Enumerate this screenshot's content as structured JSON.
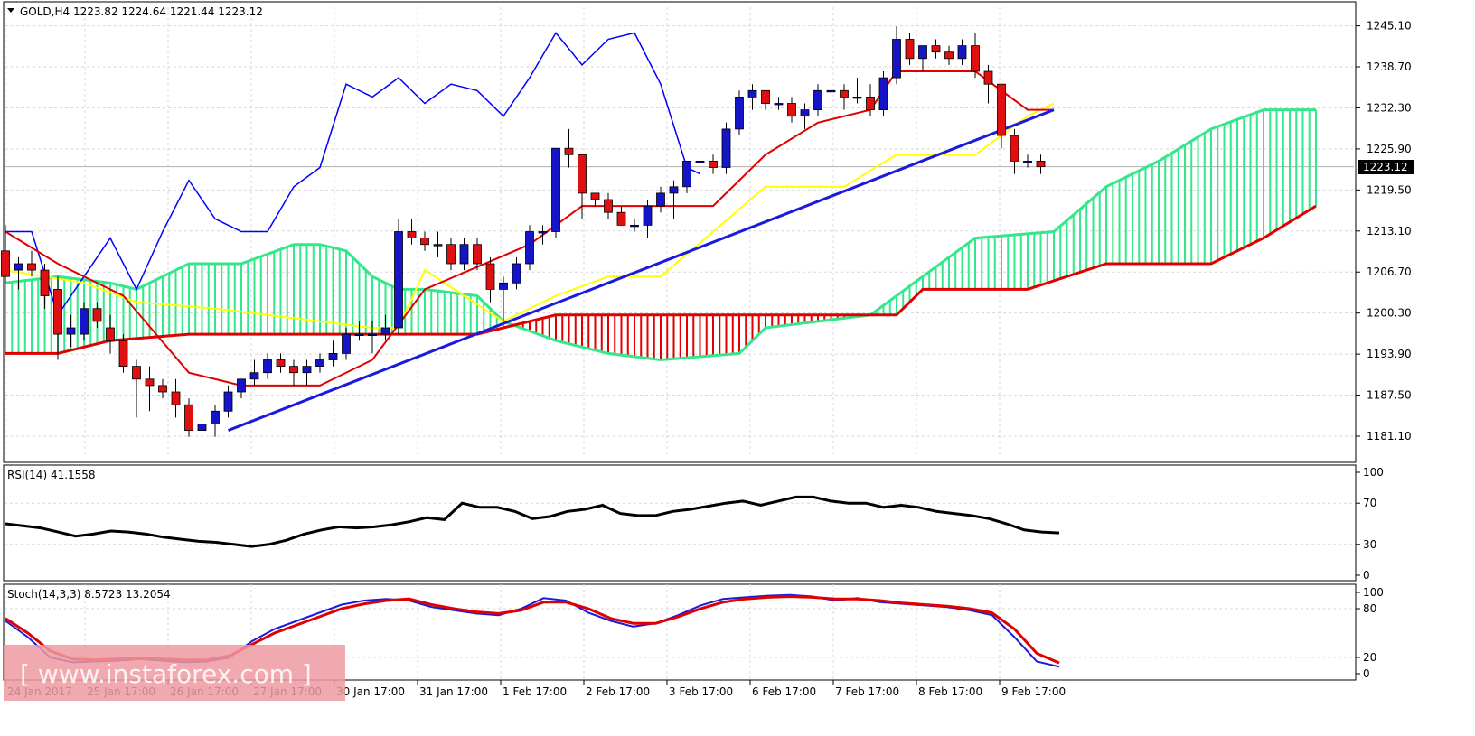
{
  "header": {
    "symbol_line": "GOLD,H4  1223.82 1224.64 1221.44 1223.12",
    "rsi_label": "RSI(14) 41.1558",
    "stoch_label": "Stoch(14,3,3) 8.5723 13.2054",
    "current_price": "1223.12"
  },
  "watermark": "[ www.instaforex.com ]",
  "colors": {
    "bull_candle": "#1515c8",
    "bear_candle": "#e01010",
    "tenkan": "#e00000",
    "kijun": "#ffff00",
    "chikou": "#0000ff",
    "cloud_green": "#33e88a",
    "cloud_red": "#e00000",
    "trendline": "#1a1adc",
    "rsi_line": "#000000",
    "stoch_main": "#1a1adc",
    "stoch_signal": "#e00000"
  },
  "chart_data": [
    {
      "type": "candlestick",
      "title": "GOLD,H4",
      "ylim": [
        1178,
        1248
      ],
      "y_ticks": [
        "1245.10",
        "1238.70",
        "1232.30",
        "1225.90",
        "1219.50",
        "1213.10",
        "1206.70",
        "1200.30",
        "1193.90",
        "1187.50",
        "1181.10"
      ],
      "x_ticks": [
        "24 Jan 2017",
        "25 Jan 17:00",
        "26 Jan 17:00",
        "27 Jan 17:00",
        "30 Jan 17:00",
        "31 Jan 17:00",
        "1 Feb 17:00",
        "2 Feb 17:00",
        "3 Feb 17:00",
        "6 Feb 17:00",
        "7 Feb 17:00",
        "8 Feb 17:00",
        "9 Feb 17:00"
      ],
      "candles": [
        [
          1210,
          1214,
          1205,
          1206
        ],
        [
          1207,
          1209,
          1204,
          1208
        ],
        [
          1208,
          1210,
          1206,
          1207
        ],
        [
          1207,
          1208,
          1201,
          1203
        ],
        [
          1204,
          1206,
          1193,
          1197
        ],
        [
          1197,
          1200,
          1195,
          1198
        ],
        [
          1197,
          1202,
          1196,
          1201
        ],
        [
          1201,
          1202,
          1198,
          1199
        ],
        [
          1198,
          1200,
          1194,
          1196
        ],
        [
          1196,
          1197,
          1191,
          1192
        ],
        [
          1192,
          1193,
          1184,
          1190
        ],
        [
          1190,
          1192,
          1185,
          1189
        ],
        [
          1189,
          1190,
          1187,
          1188
        ],
        [
          1188,
          1190,
          1184,
          1186
        ],
        [
          1186,
          1187,
          1181,
          1182
        ],
        [
          1182,
          1184,
          1181,
          1183
        ],
        [
          1183,
          1186,
          1181,
          1185
        ],
        [
          1185,
          1189,
          1184,
          1188
        ],
        [
          1188,
          1190,
          1187,
          1190
        ],
        [
          1190,
          1193,
          1189,
          1191
        ],
        [
          1191,
          1194,
          1190,
          1193
        ],
        [
          1193,
          1194,
          1191,
          1192
        ],
        [
          1192,
          1193,
          1189,
          1191
        ],
        [
          1191,
          1193,
          1189,
          1192
        ],
        [
          1192,
          1194,
          1191,
          1193
        ],
        [
          1193,
          1196,
          1192,
          1194
        ],
        [
          1194,
          1198,
          1193,
          1197
        ],
        [
          1197,
          1199,
          1196,
          1197
        ],
        [
          1197,
          1199,
          1194,
          1197
        ],
        [
          1197,
          1200,
          1196,
          1198
        ],
        [
          1198,
          1215,
          1197,
          1213
        ],
        [
          1213,
          1215,
          1211,
          1212
        ],
        [
          1212,
          1213,
          1210,
          1211
        ],
        [
          1211,
          1213,
          1209,
          1211
        ],
        [
          1211,
          1212,
          1207,
          1208
        ],
        [
          1208,
          1212,
          1207,
          1211
        ],
        [
          1211,
          1212,
          1207,
          1208
        ],
        [
          1208,
          1209,
          1202,
          1204
        ],
        [
          1204,
          1206,
          1199,
          1205
        ],
        [
          1205,
          1209,
          1204,
          1208
        ],
        [
          1208,
          1214,
          1207,
          1213
        ],
        [
          1213,
          1214,
          1211,
          1213
        ],
        [
          1213,
          1226,
          1212,
          1226
        ],
        [
          1226,
          1229,
          1223,
          1225
        ],
        [
          1225,
          1225,
          1215,
          1219
        ],
        [
          1219,
          1219,
          1217,
          1218
        ],
        [
          1218,
          1219,
          1215,
          1216
        ],
        [
          1216,
          1217,
          1214,
          1214
        ],
        [
          1214,
          1215,
          1213,
          1214
        ],
        [
          1214,
          1218,
          1212,
          1217
        ],
        [
          1217,
          1220,
          1216,
          1219
        ],
        [
          1219,
          1221,
          1215,
          1220
        ],
        [
          1220,
          1224,
          1219,
          1224
        ],
        [
          1224,
          1226,
          1223,
          1224
        ],
        [
          1224,
          1225,
          1222,
          1223
        ],
        [
          1223,
          1230,
          1222,
          1229
        ],
        [
          1229,
          1235,
          1228,
          1234
        ],
        [
          1234,
          1236,
          1232,
          1235
        ],
        [
          1235,
          1235,
          1232,
          1233
        ],
        [
          1233,
          1234,
          1232,
          1233
        ],
        [
          1233,
          1234,
          1230,
          1231
        ],
        [
          1231,
          1233,
          1229,
          1232
        ],
        [
          1232,
          1236,
          1231,
          1235
        ],
        [
          1235,
          1236,
          1233,
          1235
        ],
        [
          1235,
          1236,
          1232,
          1234
        ],
        [
          1234,
          1237,
          1233,
          1234
        ],
        [
          1234,
          1236,
          1231,
          1232
        ],
        [
          1232,
          1238,
          1231,
          1237
        ],
        [
          1237,
          1245,
          1236,
          1243
        ],
        [
          1243,
          1244,
          1239,
          1240
        ],
        [
          1240,
          1242,
          1238,
          1242
        ],
        [
          1242,
          1243,
          1240,
          1241
        ],
        [
          1241,
          1242,
          1239,
          1240
        ],
        [
          1240,
          1243,
          1239,
          1242
        ],
        [
          1242,
          1244,
          1237,
          1238
        ],
        [
          1238,
          1239,
          1233,
          1236
        ],
        [
          1236,
          1236,
          1226,
          1228
        ],
        [
          1228,
          1229,
          1222,
          1224
        ],
        [
          1224,
          1225,
          1223,
          1224
        ],
        [
          1224,
          1225,
          1222,
          1223.12
        ]
      ],
      "tenkan_sen": [
        [
          0,
          1213
        ],
        [
          4,
          1208
        ],
        [
          9,
          1203
        ],
        [
          14,
          1191
        ],
        [
          18,
          1189
        ],
        [
          24,
          1189
        ],
        [
          28,
          1193
        ],
        [
          32,
          1204
        ],
        [
          40,
          1211
        ],
        [
          44,
          1217
        ],
        [
          50,
          1217
        ],
        [
          54,
          1217
        ],
        [
          58,
          1225
        ],
        [
          62,
          1230
        ],
        [
          66,
          1232
        ],
        [
          68,
          1238
        ],
        [
          74,
          1238
        ],
        [
          78,
          1232
        ],
        [
          80,
          1232
        ]
      ],
      "kijun_sen": [
        [
          0,
          1207
        ],
        [
          6,
          1205
        ],
        [
          10,
          1202
        ],
        [
          16,
          1201
        ],
        [
          24,
          1199
        ],
        [
          28,
          1198
        ],
        [
          30,
          1198
        ],
        [
          32,
          1207
        ],
        [
          38,
          1199
        ],
        [
          42,
          1203
        ],
        [
          46,
          1206
        ],
        [
          50,
          1206
        ],
        [
          54,
          1213
        ],
        [
          58,
          1220
        ],
        [
          64,
          1220
        ],
        [
          68,
          1225
        ],
        [
          74,
          1225
        ],
        [
          78,
          1231
        ],
        [
          80,
          1233
        ]
      ],
      "chikou_span": [
        [
          0,
          1213
        ],
        [
          2,
          1213
        ],
        [
          4,
          1200
        ],
        [
          6,
          1206
        ],
        [
          8,
          1212
        ],
        [
          10,
          1204
        ],
        [
          12,
          1213
        ],
        [
          14,
          1221
        ],
        [
          16,
          1215
        ],
        [
          18,
          1213
        ],
        [
          20,
          1213
        ],
        [
          22,
          1220
        ],
        [
          24,
          1223
        ],
        [
          26,
          1236
        ],
        [
          28,
          1234
        ],
        [
          30,
          1237
        ],
        [
          32,
          1233
        ],
        [
          34,
          1236
        ],
        [
          36,
          1235
        ],
        [
          38,
          1231
        ],
        [
          40,
          1237
        ],
        [
          42,
          1244
        ],
        [
          44,
          1239
        ],
        [
          46,
          1243
        ],
        [
          48,
          1244
        ],
        [
          50,
          1236
        ],
        [
          52,
          1223
        ],
        [
          53,
          1222
        ]
      ],
      "senkou_span_a": [
        [
          0,
          1205
        ],
        [
          4,
          1206
        ],
        [
          8,
          1205
        ],
        [
          10,
          1204
        ],
        [
          12,
          1206
        ],
        [
          14,
          1208
        ],
        [
          18,
          1208
        ],
        [
          22,
          1211
        ],
        [
          24,
          1211
        ],
        [
          26,
          1210
        ],
        [
          28,
          1206
        ],
        [
          30,
          1204
        ],
        [
          32,
          1204
        ],
        [
          36,
          1203
        ],
        [
          38,
          1199
        ],
        [
          42,
          1196
        ],
        [
          46,
          1194
        ],
        [
          50,
          1193
        ],
        [
          56,
          1194
        ],
        [
          58,
          1198
        ],
        [
          62,
          1199
        ],
        [
          66,
          1200
        ],
        [
          70,
          1206
        ],
        [
          74,
          1212
        ],
        [
          80,
          1213
        ],
        [
          84,
          1220
        ],
        [
          88,
          1224
        ],
        [
          92,
          1229
        ],
        [
          96,
          1232
        ],
        [
          100,
          1232
        ]
      ],
      "senkou_span_b": [
        [
          0,
          1194
        ],
        [
          4,
          1194
        ],
        [
          8,
          1196
        ],
        [
          14,
          1197
        ],
        [
          26,
          1197
        ],
        [
          36,
          1197
        ],
        [
          42,
          1200
        ],
        [
          50,
          1200
        ],
        [
          60,
          1200
        ],
        [
          68,
          1200
        ],
        [
          70,
          1204
        ],
        [
          78,
          1204
        ],
        [
          84,
          1208
        ],
        [
          92,
          1208
        ],
        [
          96,
          1212
        ],
        [
          100,
          1217
        ]
      ],
      "trendline": [
        [
          17,
          1182
        ],
        [
          80,
          1232
        ]
      ]
    },
    {
      "type": "line",
      "title": "RSI(14)",
      "ylim": [
        0,
        100
      ],
      "y_ticks": [
        "100",
        "70",
        "30",
        "0"
      ],
      "values": [
        50,
        48,
        46,
        42,
        38,
        40,
        43,
        42,
        40,
        37,
        35,
        33,
        32,
        30,
        28,
        30,
        34,
        40,
        44,
        47,
        46,
        47,
        49,
        52,
        56,
        54,
        70,
        66,
        66,
        62,
        55,
        57,
        62,
        64,
        68,
        60,
        58,
        58,
        62,
        64,
        67,
        70,
        72,
        68,
        72,
        76,
        76,
        72,
        70,
        70,
        66,
        68,
        66,
        62,
        60,
        58,
        55,
        50,
        44,
        42,
        41.16
      ]
    },
    {
      "type": "line",
      "title": "Stoch(14,3,3)",
      "ylim": [
        0,
        100
      ],
      "y_ticks": [
        "100",
        "80",
        "20",
        "0"
      ],
      "series": [
        {
          "values": [
            65,
            45,
            20,
            14,
            15,
            16,
            18,
            16,
            14,
            15,
            20,
            40,
            55,
            65,
            75,
            85,
            90,
            92,
            90,
            82,
            78,
            74,
            72,
            80,
            93,
            90,
            75,
            65,
            58,
            62,
            72,
            84,
            92,
            94,
            96,
            97,
            95,
            90,
            93,
            88,
            86,
            84,
            82,
            78,
            72,
            45,
            15,
            8.57
          ]
        },
        {
          "values": [
            68,
            50,
            28,
            18,
            17,
            18,
            19,
            18,
            17,
            17,
            22,
            36,
            50,
            60,
            70,
            80,
            86,
            90,
            92,
            85,
            80,
            76,
            74,
            78,
            88,
            88,
            80,
            68,
            62,
            62,
            70,
            80,
            88,
            92,
            94,
            95,
            94,
            92,
            92,
            90,
            87,
            85,
            83,
            80,
            75,
            55,
            25,
            13.21
          ]
        }
      ]
    }
  ]
}
